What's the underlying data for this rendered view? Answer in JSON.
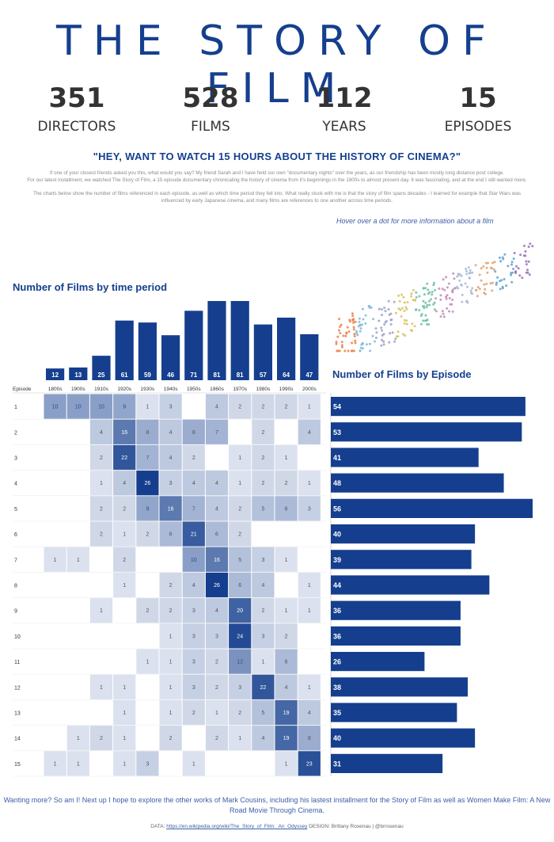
{
  "title": "THE STORY OF FILM",
  "stats": [
    {
      "value": "351",
      "label": "DIRECTORS"
    },
    {
      "value": "528",
      "label": "FILMS"
    },
    {
      "value": "112",
      "label": "YEARS"
    },
    {
      "value": "15",
      "label": "EPISODES"
    }
  ],
  "quote": "\"HEY, WANT TO WATCH 15 HOURS ABOUT THE HISTORY OF CINEMA?\"",
  "intro_p1a": "If one of your closest friends asked you this, what would you say? My friend Sarah and I have held our own \"documentary nights\" over the years, as our friendship has been mostly long distance post college.",
  "intro_p1b": "For our latest installment, we watched The Story of Film, a 15 episode documentary chronicaling the history of cinema from it's beginnings in the 1800s to almost present day. It was fascinating, and at the end I still wanted more.",
  "intro_p2": "The charts below show the number of films referenced in each episode, as well as which time period they fell into. What really stuck with me is that the story of film spans decades - I learned for example that Star Wars was influenced by early Japanese cinema, and many films are references to one another across time periods.",
  "hover_hint": "Hover over a dot for more information  about a film",
  "period_title": "Number of Films by time period",
  "episode_title": "Number of Films by Episode",
  "episode_header": "Episode",
  "footer_text": "Wanting more? So am I! Next up I hope to explore the other works of Mark Cousins, including his lastest installment for the Story of Film as well as Women Make Film: A New Road Movie Through Cinema.",
  "credit_label": "DATA:",
  "credit_link": "https://en.wikipedia.org/wiki/The_Story_of_Film:_An_Odyssey",
  "credit_design": "DESIGN: Brittany Rosenau | @brrosenau",
  "colors": {
    "primary": "#153f8e",
    "accent": "#3b5fa8"
  },
  "chart_data": [
    {
      "type": "bar",
      "title": "Number of Films by time period",
      "categories": [
        "1800s",
        "1900s",
        "1910s",
        "1920s",
        "1930s",
        "1940s",
        "1950s",
        "1960s",
        "1970s",
        "1980s",
        "1990s",
        "2000s"
      ],
      "values": [
        12,
        13,
        25,
        61,
        59,
        46,
        71,
        81,
        81,
        57,
        64,
        47
      ]
    },
    {
      "type": "heatmap",
      "rows": [
        "1",
        "2",
        "3",
        "4",
        "5",
        "6",
        "7",
        "8",
        "9",
        "10",
        "11",
        "12",
        "13",
        "14",
        "15"
      ],
      "columns": [
        "1800s",
        "1900s",
        "1910s",
        "1920s",
        "1930s",
        "1940s",
        "1950s",
        "1960s",
        "1970s",
        "1980s",
        "1990s",
        "2000s"
      ],
      "values": [
        [
          10,
          10,
          10,
          9,
          1,
          3,
          null,
          4,
          2,
          2,
          2,
          1
        ],
        [
          null,
          null,
          4,
          16,
          8,
          4,
          8,
          7,
          null,
          2,
          null,
          4
        ],
        [
          null,
          null,
          2,
          22,
          7,
          4,
          2,
          null,
          1,
          2,
          1,
          null
        ],
        [
          null,
          null,
          1,
          4,
          26,
          3,
          4,
          4,
          1,
          2,
          2,
          1
        ],
        [
          null,
          null,
          2,
          2,
          9,
          16,
          7,
          4,
          2,
          5,
          6,
          3
        ],
        [
          null,
          null,
          2,
          1,
          2,
          6,
          21,
          6,
          2,
          null,
          null,
          null
        ],
        [
          1,
          1,
          null,
          2,
          null,
          null,
          10,
          16,
          5,
          3,
          1,
          null
        ],
        [
          null,
          null,
          null,
          1,
          null,
          2,
          4,
          26,
          6,
          4,
          null,
          1
        ],
        [
          null,
          null,
          1,
          null,
          2,
          2,
          3,
          4,
          20,
          2,
          1,
          1
        ],
        [
          null,
          null,
          null,
          null,
          null,
          1,
          3,
          3,
          24,
          3,
          2,
          null
        ],
        [
          null,
          null,
          null,
          null,
          1,
          1,
          3,
          2,
          12,
          1,
          6,
          null
        ],
        [
          null,
          null,
          1,
          1,
          null,
          1,
          3,
          2,
          3,
          22,
          4,
          1
        ],
        [
          null,
          null,
          null,
          1,
          null,
          1,
          2,
          1,
          2,
          5,
          19,
          4
        ],
        [
          null,
          1,
          2,
          1,
          null,
          2,
          null,
          2,
          1,
          4,
          19,
          8
        ],
        [
          1,
          1,
          null,
          1,
          3,
          null,
          1,
          null,
          null,
          null,
          1,
          23
        ]
      ]
    },
    {
      "type": "bar",
      "title": "Number of Films by Episode",
      "categories": [
        "1",
        "2",
        "3",
        "4",
        "5",
        "6",
        "7",
        "8",
        "9",
        "10",
        "11",
        "12",
        "13",
        "14",
        "15"
      ],
      "values": [
        54,
        53,
        41,
        48,
        56,
        40,
        39,
        44,
        36,
        36,
        26,
        38,
        35,
        40,
        31
      ]
    },
    {
      "type": "scatter",
      "xlabel": "",
      "ylabel": "",
      "note": "decorative scatter of films by release year"
    }
  ]
}
